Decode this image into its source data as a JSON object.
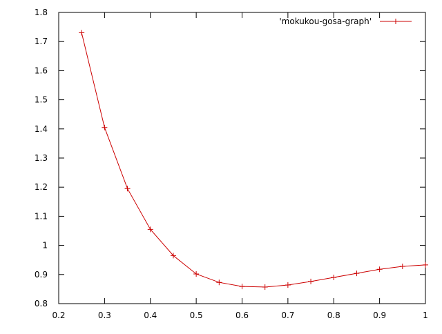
{
  "chart_data": {
    "type": "line",
    "x": [
      0.25,
      0.3,
      0.35,
      0.4,
      0.45,
      0.5,
      0.55,
      0.6,
      0.65,
      0.7,
      0.75,
      0.8,
      0.85,
      0.9,
      0.95,
      1.0
    ],
    "series": [
      {
        "name": "'mokukou-gosa-graph'",
        "color": "#cc0000",
        "values": [
          1.73,
          1.405,
          1.195,
          1.055,
          0.965,
          0.902,
          0.873,
          0.859,
          0.857,
          0.864,
          0.876,
          0.89,
          0.904,
          0.918,
          0.928,
          0.933
        ]
      }
    ],
    "xlim": [
      0.2,
      1
    ],
    "xticks": [
      0.2,
      0.3,
      0.4,
      0.5,
      0.6,
      0.7,
      0.8,
      0.9,
      1
    ],
    "ylim": [
      0.8,
      1.8
    ],
    "yticks": [
      0.8,
      0.9,
      1,
      1.1,
      1.2,
      1.3,
      1.4,
      1.5,
      1.6,
      1.7,
      1.8
    ],
    "legend": "top-right",
    "grid": false
  }
}
